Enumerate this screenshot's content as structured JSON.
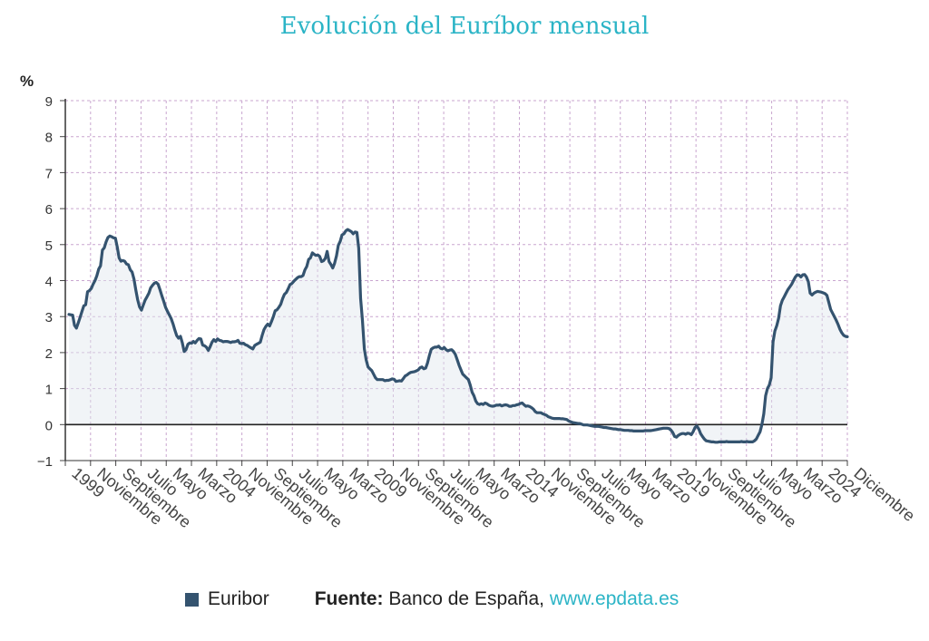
{
  "chart_data": {
    "type": "area",
    "title": "Evolución del Euríbor mensual",
    "ylabel": "%",
    "ylim": [
      -1,
      9
    ],
    "yticks": [
      -1,
      0,
      1,
      2,
      3,
      4,
      5,
      6,
      7,
      8,
      9
    ],
    "grid": true,
    "legend_position": "bottom",
    "x_tick_labels": [
      "1999",
      "Noviembre",
      "Septiembre",
      "Julio",
      "Mayo",
      "Marzo",
      "2004",
      "Noviembre",
      "Septiembre",
      "Julio",
      "Mayo",
      "Marzo",
      "2009",
      "Noviembre",
      "Septiembre",
      "Julio",
      "Mayo",
      "Marzo",
      "2014",
      "Noviembre",
      "Septiembre",
      "Julio",
      "Mayo",
      "Marzo",
      "2019",
      "Noviembre",
      "Septiembre",
      "Julio",
      "Mayo",
      "Marzo",
      "2024",
      "Diciembre"
    ],
    "series": [
      {
        "name": "Euribor",
        "color": "#34536f",
        "x_range": [
          "1999-01",
          "2024-12"
        ],
        "values": [
          3.06,
          3.05,
          3.04,
          2.76,
          2.68,
          2.82,
          2.98,
          3.14,
          3.3,
          3.33,
          3.69,
          3.72,
          3.78,
          3.9,
          4.0,
          4.13,
          4.32,
          4.41,
          4.85,
          4.91,
          5.08,
          5.2,
          5.24,
          5.22,
          5.19,
          5.18,
          4.94,
          4.63,
          4.54,
          4.56,
          4.54,
          4.46,
          4.44,
          4.3,
          4.24,
          4.04,
          3.74,
          3.46,
          3.27,
          3.18,
          3.32,
          3.46,
          3.55,
          3.65,
          3.8,
          3.87,
          3.93,
          3.95,
          3.9,
          3.75,
          3.58,
          3.43,
          3.26,
          3.15,
          3.05,
          2.95,
          2.8,
          2.63,
          2.47,
          2.4,
          2.45,
          2.28,
          2.03,
          2.08,
          2.23,
          2.27,
          2.26,
          2.31,
          2.27,
          2.34,
          2.39,
          2.38,
          2.21,
          2.19,
          2.15,
          2.06,
          2.16,
          2.29,
          2.36,
          2.31,
          2.38,
          2.34,
          2.33,
          2.3,
          2.31,
          2.31,
          2.3,
          2.28,
          2.3,
          2.3,
          2.31,
          2.34,
          2.26,
          2.25,
          2.26,
          2.22,
          2.2,
          2.16,
          2.13,
          2.1,
          2.2,
          2.23,
          2.26,
          2.29,
          2.48,
          2.64,
          2.73,
          2.79,
          2.74,
          2.86,
          3.0,
          3.16,
          3.19,
          3.26,
          3.34,
          3.5,
          3.62,
          3.67,
          3.77,
          3.89,
          3.92,
          3.98,
          4.03,
          4.08,
          4.11,
          4.11,
          4.14,
          4.3,
          4.39,
          4.59,
          4.63,
          4.77,
          4.73,
          4.7,
          4.71,
          4.67,
          4.53,
          4.55,
          4.62,
          4.81,
          4.53,
          4.45,
          4.35,
          4.48,
          4.69,
          4.98,
          5.09,
          5.27,
          5.3,
          5.38,
          5.42,
          5.39,
          5.36,
          5.3,
          5.35,
          5.34,
          4.9,
          3.5,
          2.9,
          2.1,
          1.8,
          1.6,
          1.55,
          1.5,
          1.4,
          1.3,
          1.25,
          1.25,
          1.25,
          1.25,
          1.22,
          1.23,
          1.23,
          1.25,
          1.27,
          1.26,
          1.2,
          1.21,
          1.22,
          1.21,
          1.28,
          1.35,
          1.38,
          1.42,
          1.45,
          1.46,
          1.47,
          1.49,
          1.52,
          1.58,
          1.6,
          1.55,
          1.57,
          1.71,
          1.92,
          2.09,
          2.13,
          2.15,
          2.15,
          2.18,
          2.12,
          2.1,
          2.14,
          2.08,
          2.05,
          2.07,
          2.08,
          2.03,
          1.95,
          1.8,
          1.65,
          1.52,
          1.4,
          1.35,
          1.3,
          1.25,
          1.1,
          0.9,
          0.8,
          0.65,
          0.58,
          0.56,
          0.58,
          0.56,
          0.6,
          0.58,
          0.54,
          0.52,
          0.51,
          0.52,
          0.54,
          0.54,
          0.55,
          0.52,
          0.54,
          0.55,
          0.54,
          0.51,
          0.51,
          0.53,
          0.53,
          0.55,
          0.56,
          0.59,
          0.6,
          0.55,
          0.51,
          0.52,
          0.5,
          0.47,
          0.43,
          0.36,
          0.33,
          0.33,
          0.33,
          0.3,
          0.28,
          0.26,
          0.22,
          0.2,
          0.18,
          0.17,
          0.17,
          0.17,
          0.17,
          0.16,
          0.16,
          0.15,
          0.14,
          0.1,
          0.08,
          0.06,
          0.05,
          0.04,
          0.03,
          0.03,
          0.01,
          -0.01,
          -0.01,
          -0.01,
          -0.02,
          -0.03,
          -0.04,
          -0.05,
          -0.05,
          -0.05,
          -0.06,
          -0.07,
          -0.08,
          -0.08,
          -0.09,
          -0.1,
          -0.11,
          -0.12,
          -0.12,
          -0.13,
          -0.14,
          -0.14,
          -0.15,
          -0.16,
          -0.16,
          -0.16,
          -0.17,
          -0.17,
          -0.18,
          -0.18,
          -0.18,
          -0.18,
          -0.18,
          -0.18,
          -0.17,
          -0.17,
          -0.17,
          -0.17,
          -0.16,
          -0.15,
          -0.14,
          -0.13,
          -0.12,
          -0.11,
          -0.1,
          -0.1,
          -0.1,
          -0.11,
          -0.15,
          -0.22,
          -0.33,
          -0.35,
          -0.3,
          -0.27,
          -0.25,
          -0.25,
          -0.27,
          -0.24,
          -0.25,
          -0.28,
          -0.2,
          -0.08,
          -0.04,
          -0.12,
          -0.25,
          -0.33,
          -0.4,
          -0.45,
          -0.46,
          -0.47,
          -0.48,
          -0.48,
          -0.49,
          -0.49,
          -0.48,
          -0.48,
          -0.48,
          -0.48,
          -0.47,
          -0.48,
          -0.48,
          -0.48,
          -0.48,
          -0.48,
          -0.48,
          -0.48,
          -0.47,
          -0.48,
          -0.48,
          -0.47,
          -0.48,
          -0.48,
          -0.48,
          -0.45,
          -0.4,
          -0.3,
          -0.2,
          0.0,
          0.3,
          0.8,
          1.0,
          1.1,
          1.3,
          2.3,
          2.6,
          2.75,
          2.95,
          3.3,
          3.45,
          3.55,
          3.65,
          3.75,
          3.82,
          3.9,
          4.0,
          4.1,
          4.16,
          4.15,
          4.1,
          4.16,
          4.17,
          4.1,
          3.97,
          3.65,
          3.6,
          3.65,
          3.68,
          3.7,
          3.69,
          3.68,
          3.66,
          3.64,
          3.59,
          3.4,
          3.2,
          3.1,
          3.0,
          2.9,
          2.78,
          2.65,
          2.55,
          2.48,
          2.45,
          2.44
        ]
      }
    ]
  },
  "legend": {
    "series_label": "Euribor",
    "source_label": "Fuente:",
    "source_text": "Banco de España,",
    "source_link": "www.epdata.es"
  }
}
